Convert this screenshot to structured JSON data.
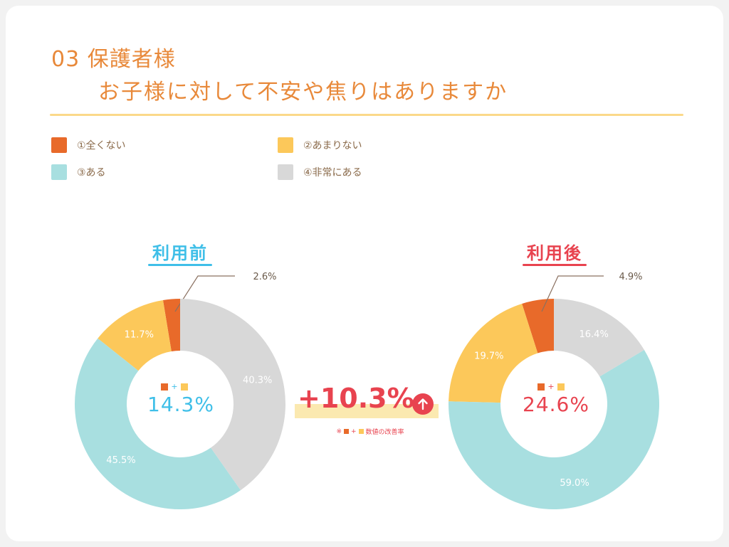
{
  "title": {
    "line1": "03 保護者様",
    "line2": "お子様に対して不安や焦りはありますか"
  },
  "legend": [
    {
      "label": "①全くない",
      "color": "#e86a2a"
    },
    {
      "label": "②あまりない",
      "color": "#fcc85a"
    },
    {
      "label": "③ある",
      "color": "#a8dfe0"
    },
    {
      "label": "④非常にある",
      "color": "#d8d8d8"
    }
  ],
  "center_key": {
    "plus": "+"
  },
  "before": {
    "title": "利用前",
    "title_color": "#3fbfe8",
    "center_value": "14.3%"
  },
  "after": {
    "title": "利用後",
    "title_color": "#e8434f",
    "center_value": "24.6%"
  },
  "improvement": {
    "value": "+10.3%",
    "note_prefix": "※",
    "note_plus": "+",
    "note_suffix": "数値の改善率"
  },
  "chart_data": [
    {
      "type": "pie",
      "title": "利用前",
      "categories": [
        "①全くない",
        "②あまりない",
        "③ある",
        "④非常にある"
      ],
      "values": [
        2.6,
        11.7,
        45.5,
        40.3
      ],
      "labels": [
        "2.6%",
        "11.7%",
        "45.5%",
        "40.3%"
      ],
      "colors": [
        "#e86a2a",
        "#fcc85a",
        "#a8dfe0",
        "#d8d8d8"
      ],
      "donut": true,
      "legend": "top"
    },
    {
      "type": "pie",
      "title": "利用後",
      "categories": [
        "①全くない",
        "②あまりない",
        "③ある",
        "④非常にある"
      ],
      "values": [
        4.9,
        19.7,
        59.0,
        16.4
      ],
      "labels": [
        "4.9%",
        "19.7%",
        "59.0%",
        "16.4%"
      ],
      "colors": [
        "#e86a2a",
        "#fcc85a",
        "#a8dfe0",
        "#d8d8d8"
      ],
      "donut": true,
      "legend": "top"
    }
  ]
}
